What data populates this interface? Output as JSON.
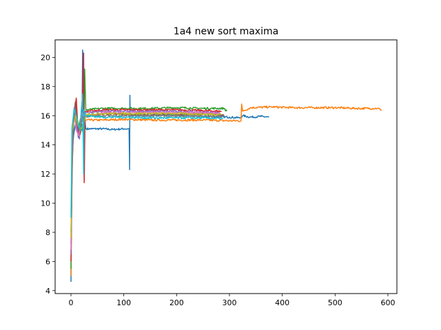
{
  "chart_data": {
    "type": "line",
    "title": "1a4 new sort maxima",
    "xlabel": "",
    "ylabel": "",
    "xlim": [
      -30,
      617
    ],
    "ylim": [
      3.8,
      21.2
    ],
    "x_ticks": [
      0,
      100,
      200,
      300,
      400,
      500,
      600
    ],
    "y_ticks": [
      4,
      6,
      8,
      10,
      12,
      14,
      16,
      18,
      20
    ],
    "grid": false,
    "legend": "none",
    "series": [
      {
        "color": "#1f77b4",
        "points": [
          [
            0,
            4.6
          ],
          [
            1,
            9.8
          ],
          [
            3,
            14.0
          ],
          [
            6,
            14.9
          ],
          [
            10,
            15.6
          ],
          [
            14,
            14.5
          ],
          [
            18,
            15.0
          ],
          [
            21,
            16.3
          ],
          [
            22,
            20.5
          ],
          [
            23,
            19.8
          ],
          [
            24,
            15.6
          ],
          [
            25,
            11.6
          ],
          [
            26,
            15.8
          ],
          [
            28,
            15.1
          ],
          [
            40,
            15.1
          ],
          [
            60,
            15.1
          ],
          [
            80,
            15.05
          ],
          [
            100,
            15.1
          ],
          [
            110,
            15.1
          ],
          [
            111,
            12.3
          ],
          [
            111.5,
            17.4
          ],
          [
            112,
            16.0
          ],
          [
            140,
            16.0
          ],
          [
            180,
            16.05
          ],
          [
            220,
            16.0
          ],
          [
            260,
            15.95
          ],
          [
            300,
            15.9
          ],
          [
            320,
            15.85
          ],
          [
            325,
            16.0
          ],
          [
            340,
            15.9
          ],
          [
            360,
            15.95
          ],
          [
            375,
            15.9
          ]
        ]
      },
      {
        "color": "#ff7f0e",
        "points": [
          [
            0,
            5.0
          ],
          [
            2,
            12.0
          ],
          [
            5,
            15.5
          ],
          [
            10,
            16.0
          ],
          [
            15,
            14.8
          ],
          [
            20,
            15.6
          ],
          [
            25,
            15.7
          ],
          [
            30,
            15.7
          ],
          [
            60,
            15.7
          ],
          [
            100,
            15.75
          ],
          [
            150,
            15.7
          ],
          [
            200,
            15.7
          ],
          [
            250,
            15.7
          ],
          [
            300,
            15.65
          ],
          [
            322,
            15.65
          ],
          [
            323,
            16.8
          ],
          [
            325,
            16.3
          ],
          [
            340,
            16.55
          ],
          [
            380,
            16.6
          ],
          [
            420,
            16.55
          ],
          [
            460,
            16.55
          ],
          [
            500,
            16.55
          ],
          [
            540,
            16.5
          ],
          [
            580,
            16.5
          ],
          [
            588,
            16.4
          ]
        ]
      },
      {
        "color": "#2ca02c",
        "points": [
          [
            0,
            5.5
          ],
          [
            2,
            13.0
          ],
          [
            5,
            16.0
          ],
          [
            9,
            16.8
          ],
          [
            13,
            14.8
          ],
          [
            18,
            15.8
          ],
          [
            24,
            14.6
          ],
          [
            26,
            19.2
          ],
          [
            28,
            16.4
          ],
          [
            60,
            16.5
          ],
          [
            100,
            16.5
          ],
          [
            150,
            16.5
          ],
          [
            200,
            16.55
          ],
          [
            250,
            16.5
          ],
          [
            290,
            16.5
          ],
          [
            295,
            16.3
          ]
        ]
      },
      {
        "color": "#d62728",
        "points": [
          [
            0,
            6.0
          ],
          [
            2,
            12.5
          ],
          [
            6,
            16.2
          ],
          [
            10,
            17.2
          ],
          [
            14,
            14.6
          ],
          [
            19,
            15.4
          ],
          [
            22,
            16.1
          ],
          [
            24,
            20.3
          ],
          [
            25,
            11.4
          ],
          [
            27,
            16.3
          ],
          [
            60,
            16.4
          ],
          [
            100,
            16.4
          ],
          [
            150,
            16.4
          ],
          [
            200,
            16.4
          ],
          [
            250,
            16.35
          ],
          [
            285,
            16.3
          ]
        ]
      },
      {
        "color": "#9467bd",
        "points": [
          [
            0,
            6.5
          ],
          [
            3,
            13.5
          ],
          [
            7,
            16.6
          ],
          [
            11,
            15.2
          ],
          [
            16,
            14.4
          ],
          [
            20,
            16.6
          ],
          [
            26,
            16.2
          ],
          [
            60,
            16.3
          ],
          [
            100,
            16.3
          ],
          [
            150,
            16.3
          ],
          [
            200,
            16.3
          ],
          [
            250,
            16.25
          ],
          [
            282,
            16.2
          ]
        ]
      },
      {
        "color": "#8c564b",
        "points": [
          [
            0,
            7.2
          ],
          [
            3,
            14.2
          ],
          [
            8,
            16.9
          ],
          [
            12,
            15.6
          ],
          [
            17,
            14.7
          ],
          [
            22,
            15.3
          ],
          [
            26,
            16.0
          ],
          [
            60,
            16.1
          ],
          [
            100,
            16.1
          ],
          [
            150,
            16.1
          ],
          [
            200,
            16.1
          ],
          [
            250,
            16.1
          ],
          [
            290,
            16.05
          ]
        ]
      },
      {
        "color": "#e377c2",
        "points": [
          [
            0,
            6.8
          ],
          [
            2,
            13.8
          ],
          [
            6,
            16.6
          ],
          [
            10,
            15.0
          ],
          [
            15,
            14.6
          ],
          [
            21,
            16.2
          ],
          [
            26,
            15.9
          ],
          [
            60,
            16.2
          ],
          [
            100,
            16.2
          ],
          [
            150,
            16.2
          ],
          [
            200,
            16.2
          ],
          [
            250,
            16.2
          ],
          [
            280,
            16.15
          ]
        ]
      },
      {
        "color": "#7f7f7f",
        "points": [
          [
            0,
            8.0
          ],
          [
            3,
            14.6
          ],
          [
            7,
            16.2
          ],
          [
            12,
            15.4
          ],
          [
            18,
            14.9
          ],
          [
            23,
            15.5
          ],
          [
            27,
            15.95
          ],
          [
            60,
            16.0
          ],
          [
            100,
            16.0
          ],
          [
            150,
            16.0
          ],
          [
            200,
            16.0
          ],
          [
            250,
            15.95
          ],
          [
            286,
            15.95
          ]
        ]
      },
      {
        "color": "#bcbd22",
        "points": [
          [
            0,
            7.6
          ],
          [
            2,
            15.0
          ],
          [
            5,
            15.4
          ],
          [
            9,
            16.0
          ],
          [
            14,
            15.3
          ],
          [
            20,
            15.1
          ],
          [
            25,
            15.6
          ],
          [
            30,
            16.1
          ],
          [
            60,
            16.15
          ],
          [
            100,
            16.15
          ],
          [
            150,
            16.15
          ],
          [
            200,
            16.15
          ],
          [
            250,
            16.1
          ],
          [
            284,
            16.1
          ]
        ]
      },
      {
        "color": "#17becf",
        "points": [
          [
            0,
            9.0
          ],
          [
            2,
            15.2
          ],
          [
            6,
            16.5
          ],
          [
            11,
            15.9
          ],
          [
            17,
            15.0
          ],
          [
            22,
            17.5
          ],
          [
            24,
            12.0
          ],
          [
            25,
            16.4
          ],
          [
            27,
            16.0
          ],
          [
            60,
            15.9
          ],
          [
            100,
            15.9
          ],
          [
            150,
            15.85
          ],
          [
            200,
            15.85
          ],
          [
            250,
            15.85
          ],
          [
            288,
            15.8
          ]
        ]
      }
    ]
  }
}
